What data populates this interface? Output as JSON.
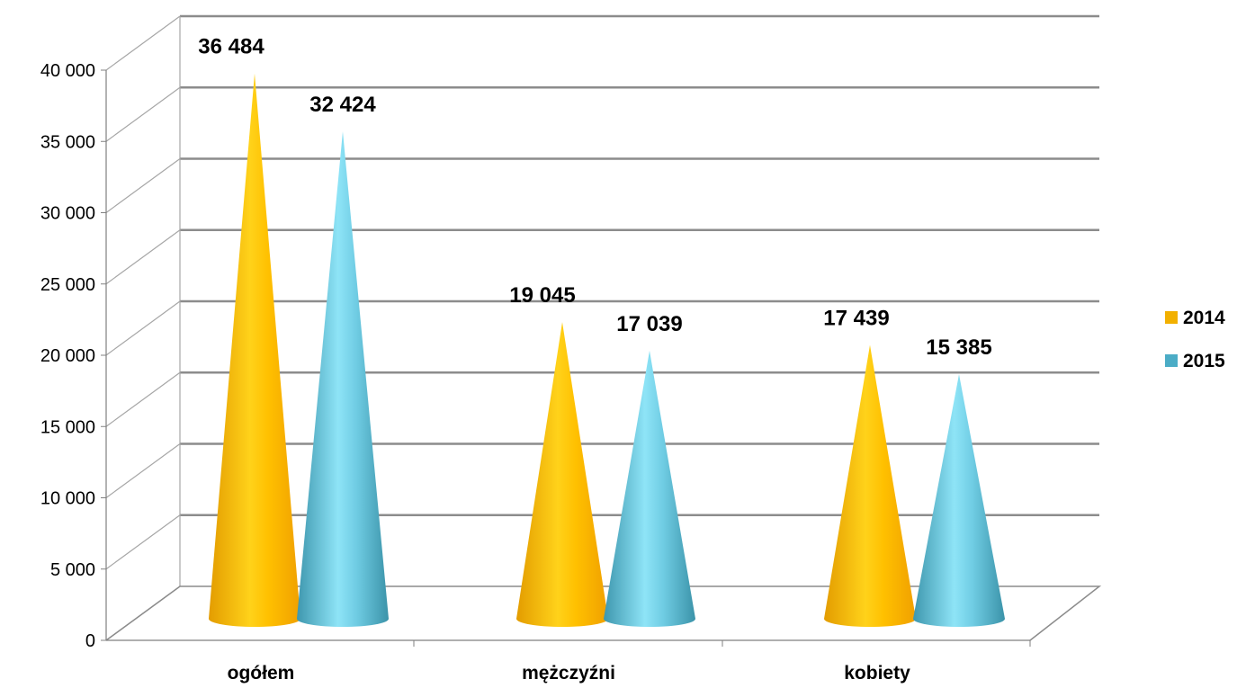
{
  "chart_data": {
    "type": "bar",
    "style": "3d-cone",
    "categories": [
      "ogółem",
      "mężczyźni",
      "kobiety"
    ],
    "series": [
      {
        "name": "2014",
        "values": [
          36484,
          19045,
          17439
        ],
        "labels": [
          "36 484",
          "19 045",
          "17 439"
        ],
        "color": "#F2B000"
      },
      {
        "name": "2015",
        "values": [
          32424,
          17039,
          15385
        ],
        "labels": [
          "32 424",
          "17 039",
          "15 385"
        ],
        "color": "#4BACC6"
      }
    ],
    "ylim": [
      0,
      40000
    ],
    "yticks": [
      0,
      5000,
      10000,
      15000,
      20000,
      25000,
      30000,
      35000,
      40000
    ],
    "ytick_labels": [
      "0",
      "5 000",
      "10 000",
      "15 000",
      "20 000",
      "25 000",
      "30 000",
      "35 000",
      "40 000"
    ],
    "grid": true,
    "legend_position": "right"
  }
}
